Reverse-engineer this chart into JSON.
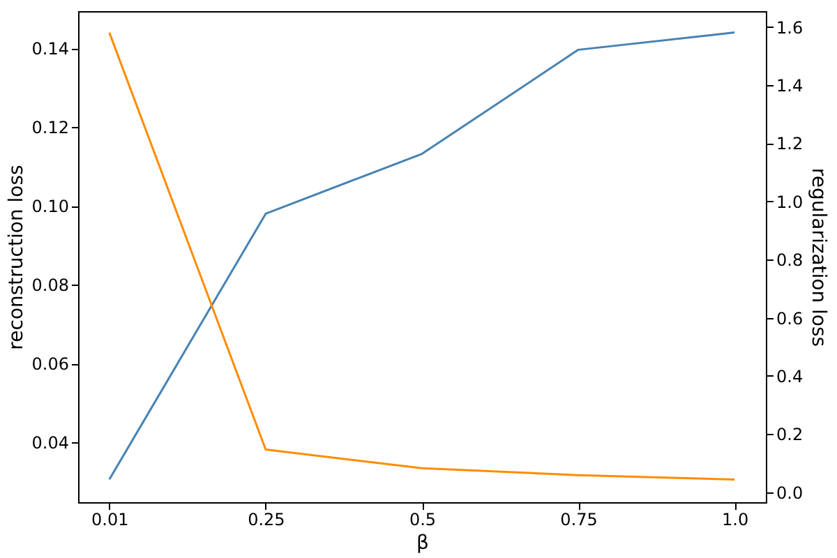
{
  "chart_data": {
    "type": "line",
    "categories": [
      "0.01",
      "0.25",
      "0.5",
      "0.75",
      "1.0"
    ],
    "series": [
      {
        "color": "#4682b4",
        "values": [
          0.0306,
          0.098,
          0.1132,
          0.1396,
          0.144
        ]
      },
      {
        "color": "#ff8c00",
        "values": [
          1.58,
          0.147,
          0.083,
          0.059,
          0.044
        ],
        "axis": "y2"
      }
    ],
    "xlabel": "β",
    "ylabel": "reconstruction loss",
    "y2label": "regularization loss",
    "ylim": [
      0.0248,
      0.1494
    ],
    "yticks": [
      {
        "value": 0.04,
        "label": "0.04"
      },
      {
        "value": 0.06,
        "label": "0.06"
      },
      {
        "value": 0.08,
        "label": "0.08"
      },
      {
        "value": 0.1,
        "label": "0.10"
      },
      {
        "value": 0.12,
        "label": "0.12"
      },
      {
        "value": 0.14,
        "label": "0.14"
      }
    ],
    "y2lim": [
      -0.034,
      1.654
    ],
    "y2ticks": [
      {
        "value": 0,
        "label": "0.0"
      },
      {
        "value": 0.2,
        "label": "0.2"
      },
      {
        "value": 0.4,
        "label": "0.4"
      },
      {
        "value": 0.6,
        "label": "0.6"
      },
      {
        "value": 0.8,
        "label": "0.8"
      },
      {
        "value": 1,
        "label": "1.0"
      },
      {
        "value": 1.2,
        "label": "1.2"
      },
      {
        "value": 1.4,
        "label": "1.4"
      },
      {
        "value": 1.6,
        "label": "1.6"
      }
    ]
  }
}
